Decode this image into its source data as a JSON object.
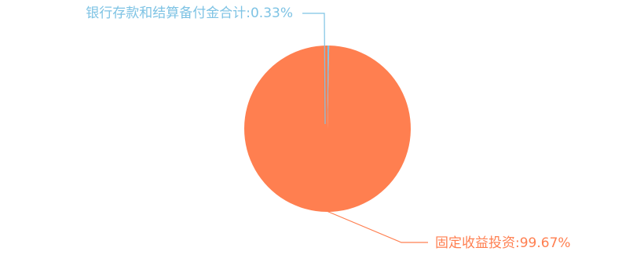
{
  "chart_data": {
    "type": "pie",
    "slices": [
      {
        "name": "银行存款和结算备付金合计",
        "value": 0.33,
        "label": "银行存款和结算备付金合计:0.33%",
        "color": "#7ec3e4"
      },
      {
        "name": "固定收益投资",
        "value": 99.67,
        "label": "固定收益投资:99.67%",
        "color": "#ff7f50"
      }
    ],
    "legend": "none"
  }
}
